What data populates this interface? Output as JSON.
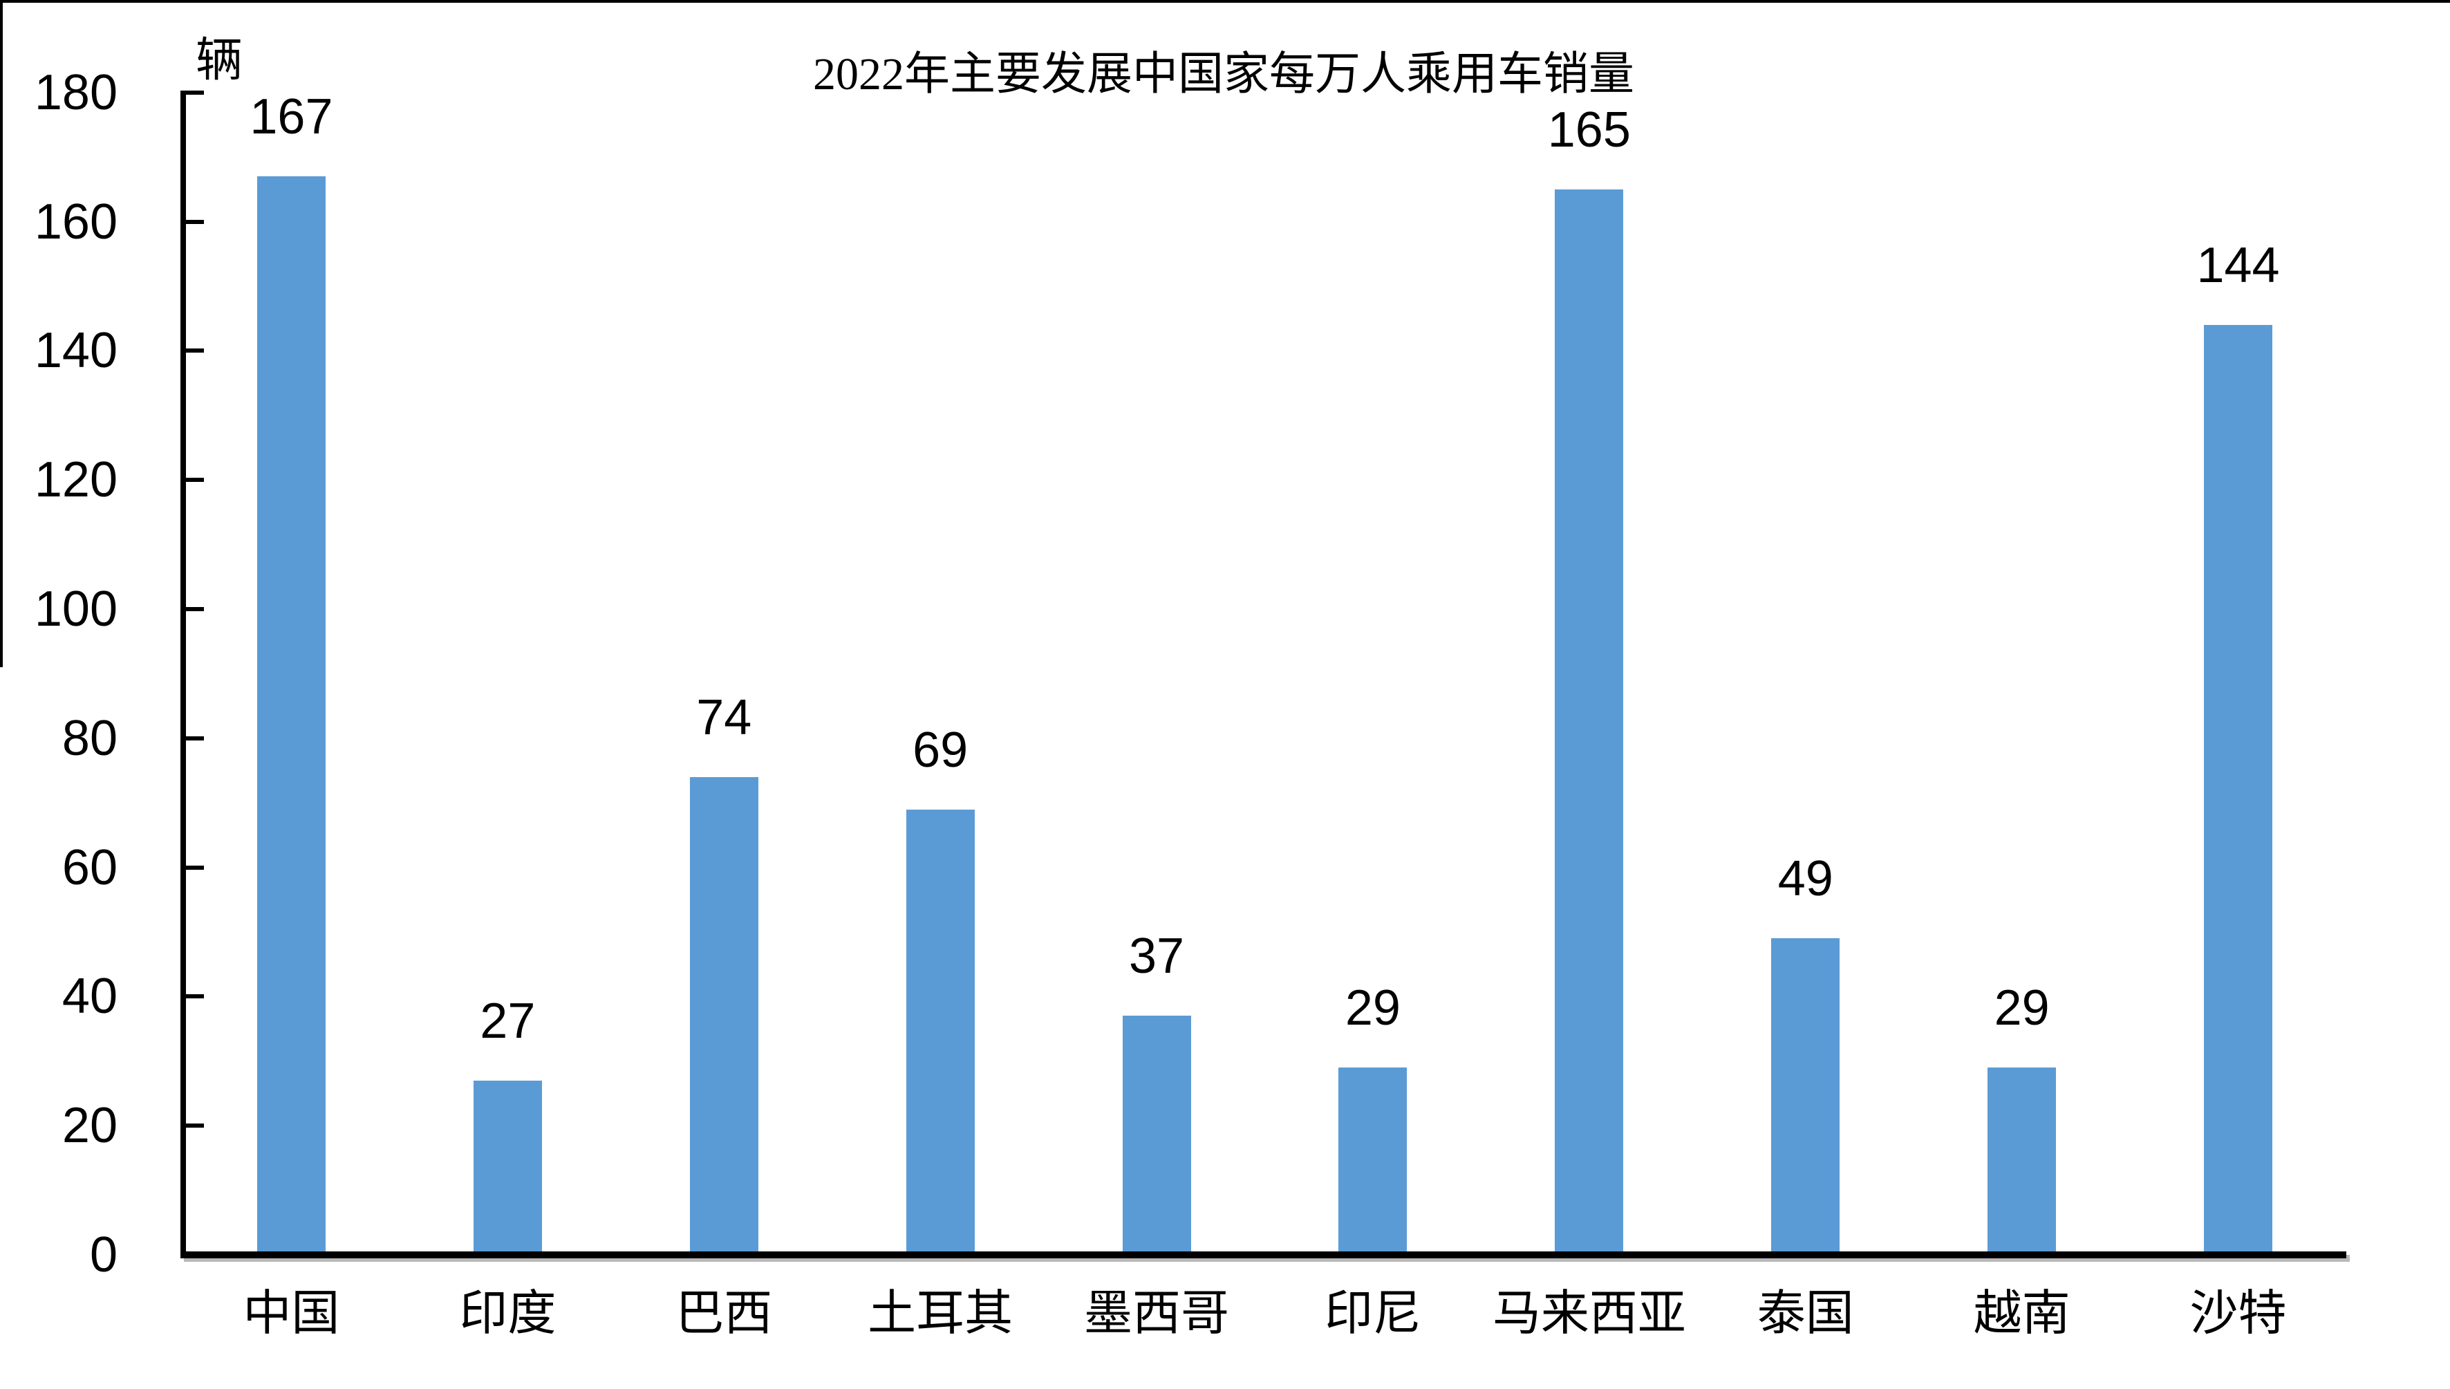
{
  "page": {
    "background_color": "#ffffff",
    "partial_border": {
      "top_line": true,
      "left_line": true,
      "border_color": "#000000"
    }
  },
  "chart_data": {
    "type": "bar",
    "title": "2022年主要发展中国家每万人乘用车销量",
    "unit_label": "辆",
    "categories": [
      "中国",
      "印度",
      "巴西",
      "土耳其",
      "墨西哥",
      "印尼",
      "马来西亚",
      "泰国",
      "越南",
      "沙特"
    ],
    "values": [
      167,
      27,
      74,
      69,
      37,
      29,
      165,
      49,
      29,
      144
    ],
    "data_labels": [
      "167",
      "27",
      "74",
      "69",
      "37",
      "29",
      "165",
      "49",
      "29",
      "144"
    ],
    "xlabel": "",
    "ylabel": "辆",
    "ylim": [
      0,
      180
    ],
    "ytick_interval": 20,
    "yticks": [
      0,
      20,
      40,
      60,
      80,
      100,
      120,
      140,
      160,
      180
    ],
    "grid": false,
    "legend": false,
    "bar_color": "#5B9BD5",
    "axis_color": "#000000",
    "text_color": "#000000",
    "tick_style": "inside-right"
  }
}
